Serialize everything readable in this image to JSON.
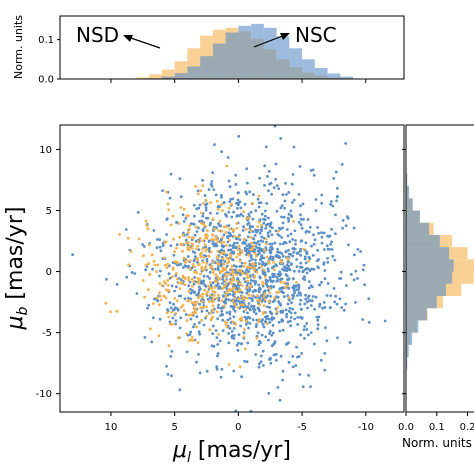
{
  "chart_data": [
    {
      "id": "top-hist",
      "type": "bar",
      "ylabel": "Norm. units",
      "yticks": [
        "0.0",
        "0.1"
      ],
      "ylim": [
        0,
        0.16
      ],
      "xlim": [
        14,
        -13
      ],
      "bin_edges": [
        8,
        7,
        6,
        5,
        4,
        3,
        2,
        1,
        0,
        -1,
        -2,
        -3,
        -4,
        -5,
        -6,
        -7,
        -8,
        -9
      ],
      "series": [
        {
          "name": "NSD",
          "color": "#f5b24c",
          "values": [
            0.004,
            0.012,
            0.024,
            0.045,
            0.078,
            0.11,
            0.125,
            0.13,
            0.121,
            0.102,
            0.076,
            0.05,
            0.03,
            0.017,
            0.009,
            0.004,
            0.002
          ]
        },
        {
          "name": "NSC",
          "color": "#5b8fc7",
          "values": [
            0.001,
            0.002,
            0.006,
            0.015,
            0.032,
            0.058,
            0.09,
            0.118,
            0.135,
            0.14,
            0.13,
            0.108,
            0.078,
            0.05,
            0.028,
            0.014,
            0.006
          ]
        }
      ],
      "annotations": [
        {
          "text": "NSD"
        },
        {
          "text": "NSC"
        }
      ]
    },
    {
      "id": "scatter",
      "type": "scatter",
      "xlabel": "μ_l [mas/yr]",
      "ylabel": "μ_b [mas/yr]",
      "xlim": [
        14,
        -13
      ],
      "ylim": [
        -11.5,
        12
      ],
      "xticks": [
        10,
        5,
        0,
        -5,
        -10
      ],
      "yticks": [
        10,
        5,
        0,
        -5,
        -10
      ],
      "series": [
        {
          "name": "NSC",
          "color": "#5b8fc7",
          "n_points": 1400,
          "center": [
            -1.0,
            0.0
          ],
          "sigma": [
            3.6,
            3.6
          ]
        },
        {
          "name": "NSD",
          "color": "#f5b24c",
          "n_points": 480,
          "center": [
            2.2,
            0.0
          ],
          "sigma": [
            2.8,
            2.6
          ]
        }
      ]
    },
    {
      "id": "right-hist",
      "type": "bar",
      "orientation": "horizontal",
      "xlabel": "Norm. units",
      "xticks": [
        "0.0",
        "0.1",
        "0.2"
      ],
      "xlim": [
        0,
        0.26
      ],
      "bin_edges": [
        8,
        7,
        6,
        5,
        4,
        3,
        2,
        1,
        0,
        -1,
        -2,
        -3,
        -4,
        -5,
        -6,
        -7,
        -8
      ],
      "series": [
        {
          "name": "NSD",
          "color": "#f5b24c",
          "values": [
            0.003,
            0.008,
            0.02,
            0.045,
            0.09,
            0.15,
            0.2,
            0.23,
            0.22,
            0.18,
            0.12,
            0.07,
            0.035,
            0.014,
            0.005,
            0.002
          ]
        },
        {
          "name": "NSC",
          "color": "#5b8fc7",
          "values": [
            0.004,
            0.01,
            0.022,
            0.045,
            0.075,
            0.11,
            0.14,
            0.155,
            0.15,
            0.13,
            0.1,
            0.068,
            0.04,
            0.02,
            0.009,
            0.004
          ]
        }
      ]
    }
  ]
}
